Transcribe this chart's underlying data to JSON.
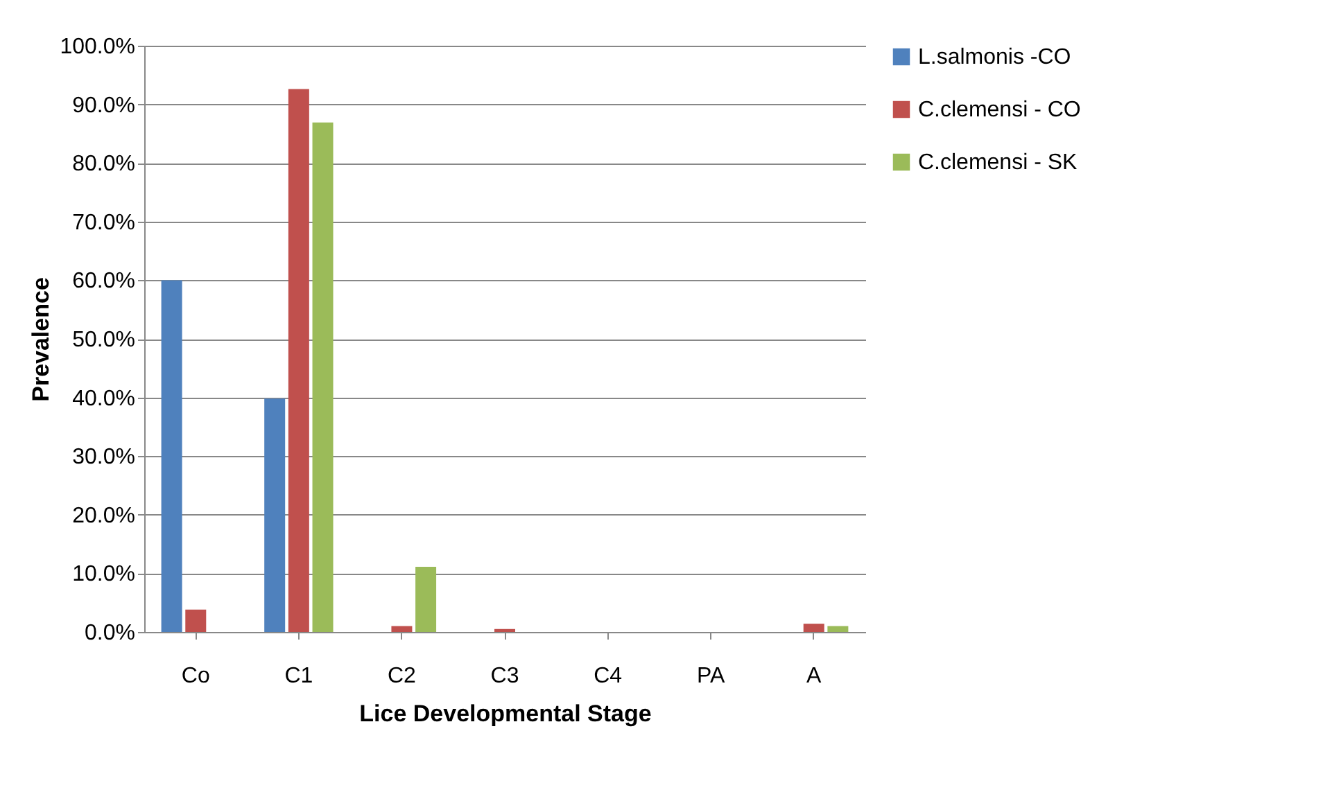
{
  "chart_data": {
    "type": "bar",
    "xlabel": "Lice Developmental Stage",
    "ylabel": "Prevalence",
    "categories": [
      "Co",
      "C1",
      "C2",
      "C3",
      "C4",
      "PA",
      "A"
    ],
    "series": [
      {
        "name": "L.salmonis -CO",
        "color": "#4f81bd",
        "values": [
          60.0,
          39.8,
          0,
          0,
          0,
          0,
          0
        ]
      },
      {
        "name": "C.clemensi - CO",
        "color": "#c0504d",
        "values": [
          3.8,
          92.6,
          1.0,
          0.5,
          0,
          0,
          1.4
        ]
      },
      {
        "name": "C.clemensi - SK",
        "color": "#9bbb59",
        "values": [
          0,
          86.9,
          11.1,
          0,
          0,
          0,
          1.0
        ]
      }
    ],
    "ylim": [
      0,
      100
    ],
    "yticks": [
      {
        "value": 0,
        "label": "0.0%"
      },
      {
        "value": 10,
        "label": "10.0%"
      },
      {
        "value": 20,
        "label": "20.0%"
      },
      {
        "value": 30,
        "label": "30.0%"
      },
      {
        "value": 40,
        "label": "40.0%"
      },
      {
        "value": 50,
        "label": "50.0%"
      },
      {
        "value": 60,
        "label": "60.0%"
      },
      {
        "value": 70,
        "label": "70.0%"
      },
      {
        "value": 80,
        "label": "80.0%"
      },
      {
        "value": 90,
        "label": "90.0%"
      },
      {
        "value": 100,
        "label": "100.0%"
      }
    ],
    "grid": "y",
    "legend": "right"
  }
}
